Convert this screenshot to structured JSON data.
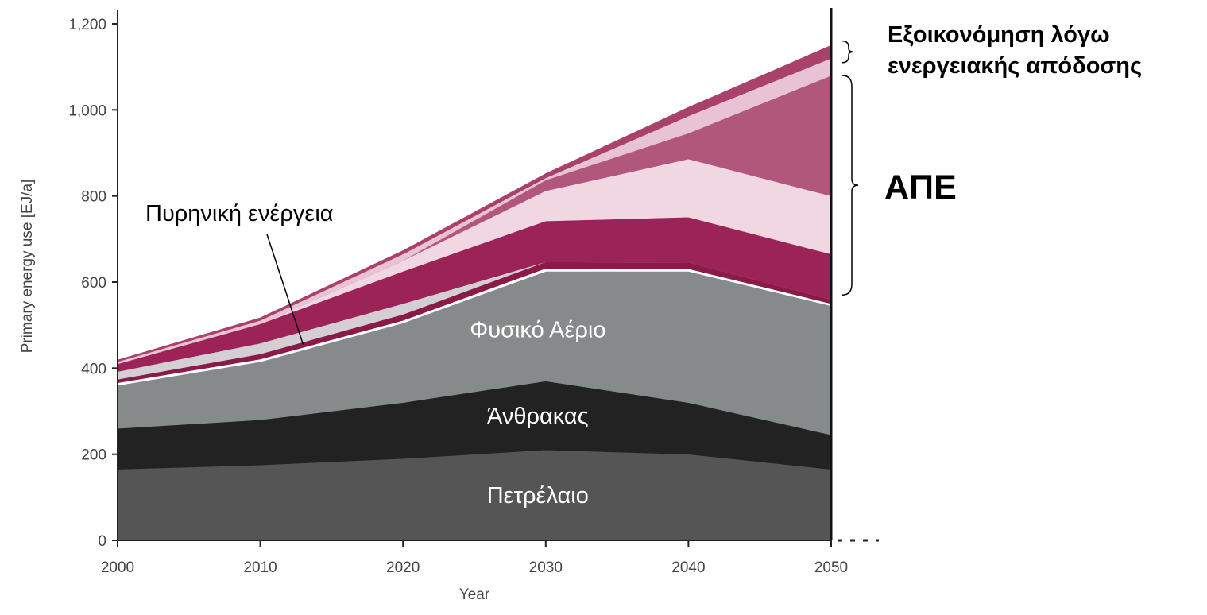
{
  "chart_data": {
    "type": "area",
    "stacked": true,
    "x": [
      2000,
      2010,
      2020,
      2030,
      2040,
      2050
    ],
    "xlabel": "Year",
    "ylabel": "Primary energy use [EJ/a]",
    "xlim": [
      2000,
      2050
    ],
    "ylim": [
      0,
      1200
    ],
    "xticks": [
      2000,
      2010,
      2020,
      2030,
      2040,
      2050
    ],
    "yticks": [
      0,
      200,
      400,
      600,
      800,
      1000,
      1200
    ],
    "ytick_labels": [
      "0",
      "200",
      "400",
      "600",
      "800",
      "1,000",
      "1,200"
    ],
    "grid": false,
    "series": [
      {
        "name": "Πετρέλαιο",
        "color": "#555555",
        "values": [
          165,
          175,
          190,
          210,
          200,
          165
        ]
      },
      {
        "name": "Άνθρακας",
        "color": "#222222",
        "values": [
          95,
          105,
          130,
          160,
          120,
          80
        ]
      },
      {
        "name": "Φυσικό Αέριο",
        "color": "#878a8b",
        "values": [
          100,
          135,
          185,
          255,
          305,
          300
        ]
      },
      {
        "color": "#ffffff",
        "values": [
          6,
          6,
          6,
          7,
          6,
          5
        ]
      },
      {
        "name": "Πυρηνική ενέργεια",
        "color": "#8a1a46",
        "values": [
          8,
          12,
          14,
          15,
          15,
          10
        ]
      },
      {
        "color": "#d4cfd3",
        "values": [
          18,
          25,
          25,
          0,
          0,
          0
        ]
      },
      {
        "color": "#9c2358",
        "values": [
          18,
          45,
          75,
          95,
          105,
          105
        ]
      },
      {
        "color": "#f0d7e2",
        "values": [
          0,
          0,
          25,
          70,
          135,
          135
        ]
      },
      {
        "color": "#b2577c",
        "values": [
          0,
          0,
          0,
          25,
          60,
          280
        ]
      },
      {
        "color": "#e8c3d3",
        "values": [
          5,
          8,
          15,
          5,
          40,
          40
        ]
      },
      {
        "color": "#a9416b",
        "values": [
          4,
          6,
          8,
          10,
          20,
          30
        ]
      }
    ],
    "annotations": {
      "inner_labels": [
        {
          "text": "Πετρέλαιο",
          "x": 2030,
          "y": 105
        },
        {
          "text": "Άνθρακας",
          "x": 2030,
          "y": 290
        },
        {
          "text": "Φυσικό Αέριο",
          "x": 2030,
          "y": 490
        }
      ],
      "callout": {
        "text": "Πυρηνική ενέργεια",
        "point_x": 2013,
        "point_y": 455
      },
      "bracket_efficiency": {
        "line1": "Εξοικονόμηση λόγω",
        "line2": "ενεργειακής απόδοσης",
        "y_from": 1110,
        "y_to": 1160
      },
      "bracket_renewables": {
        "text": "ΑΠΕ",
        "y_from": 570,
        "y_to": 1080
      }
    }
  }
}
